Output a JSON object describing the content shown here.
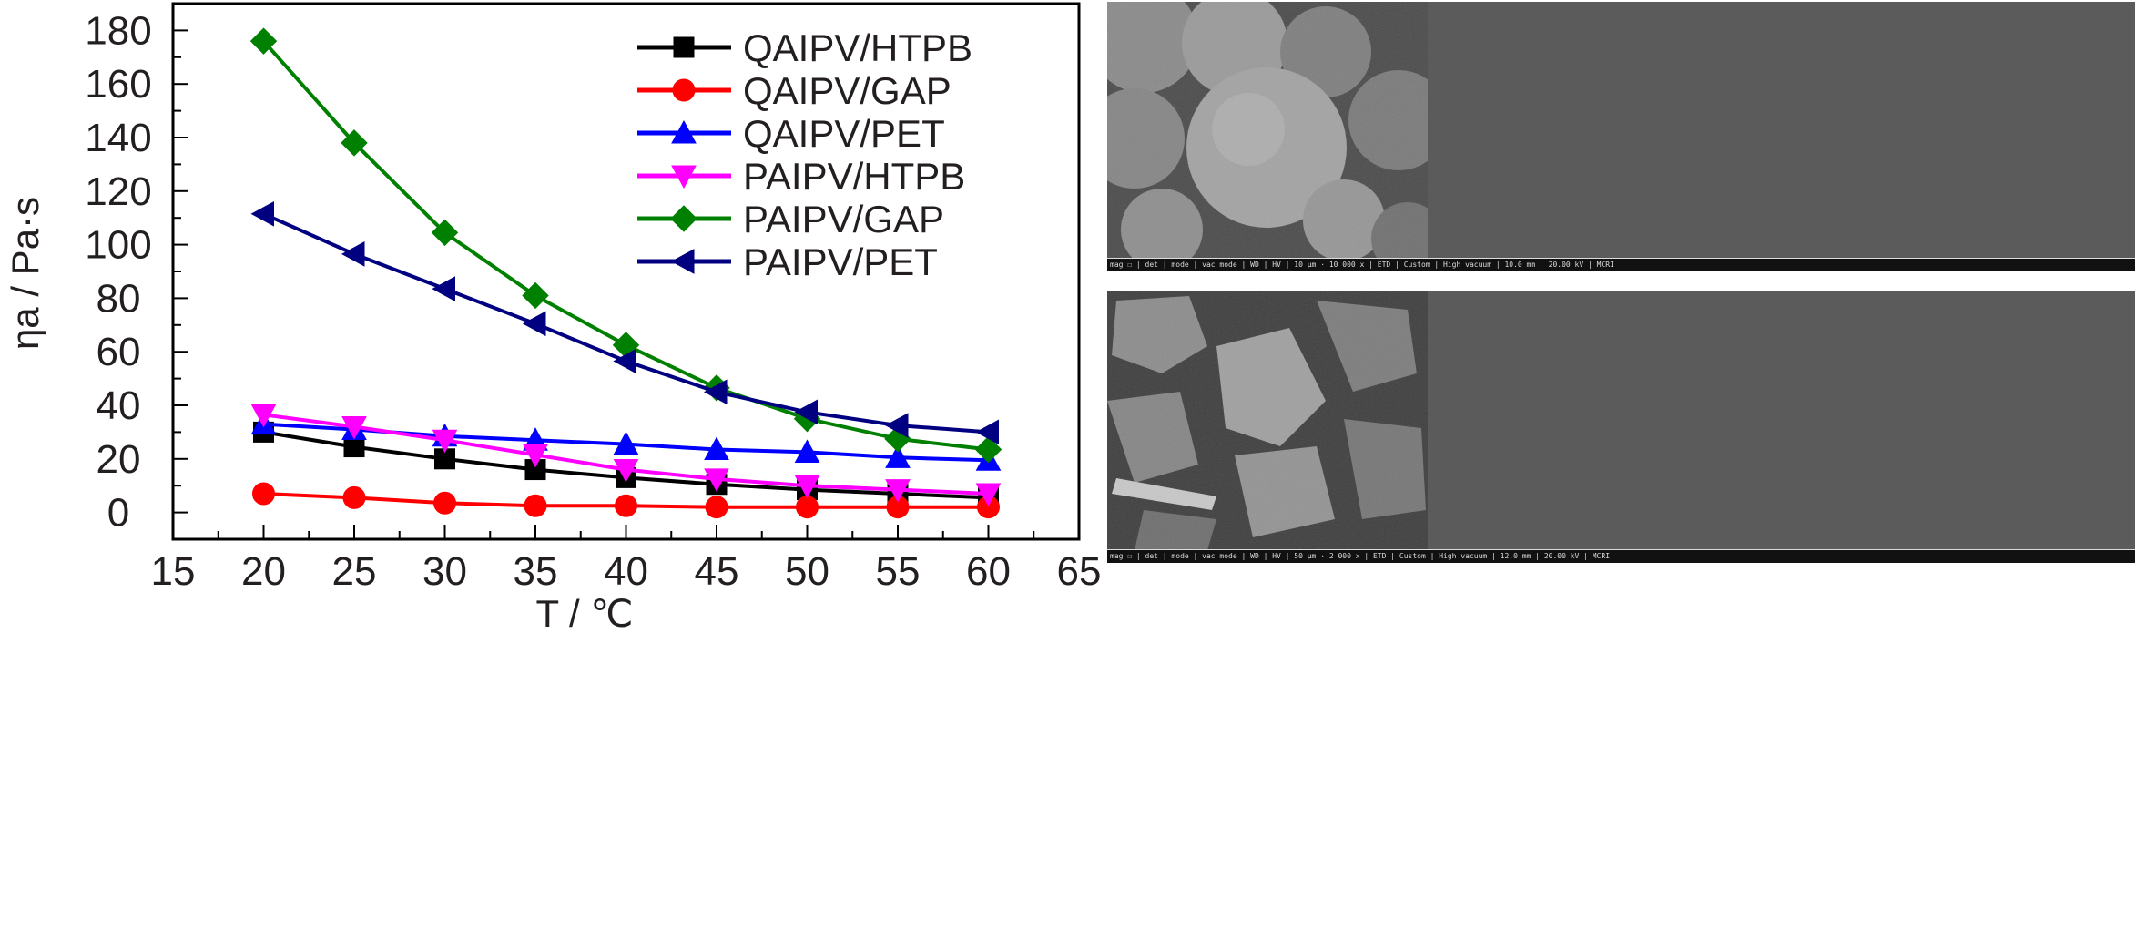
{
  "chart_data": {
    "type": "line",
    "xlabel": "T / ℃",
    "ylabel": "ηa / Pa·s",
    "xlim": [
      15,
      65
    ],
    "ylim": [
      -10,
      190
    ],
    "xticks": [
      15,
      20,
      25,
      30,
      35,
      40,
      45,
      50,
      55,
      60,
      65
    ],
    "yticks": [
      0,
      20,
      40,
      60,
      80,
      100,
      120,
      140,
      160,
      180
    ],
    "x": [
      20,
      25,
      30,
      35,
      40,
      45,
      50,
      55,
      60
    ],
    "legend_position": "top-right",
    "series": [
      {
        "name": "QAIPV/HTPB",
        "color": "#000000",
        "marker": "square",
        "values": [
          30,
          24.5,
          20,
          16,
          13,
          10.5,
          8.5,
          7,
          5.5
        ]
      },
      {
        "name": "QAIPV/GAP",
        "color": "#ff0000",
        "marker": "circle",
        "values": [
          7,
          5.5,
          3.5,
          2.5,
          2.5,
          2,
          2,
          2,
          2
        ]
      },
      {
        "name": "QAIPV/PET",
        "color": "#0000ff",
        "marker": "triangle-up",
        "values": [
          33,
          31,
          28.5,
          27,
          25.5,
          23.5,
          22.5,
          20.5,
          19.5
        ]
      },
      {
        "name": "PAIPV/HTPB",
        "color": "#ff00ff",
        "marker": "triangle-down",
        "values": [
          36.5,
          32,
          27,
          21.5,
          16,
          12.5,
          10,
          8.5,
          7
        ]
      },
      {
        "name": "PAIPV/GAP",
        "color": "#008000",
        "marker": "diamond",
        "values": [
          176,
          138,
          104.5,
          81,
          62.5,
          46.5,
          35,
          27.5,
          23.5
        ]
      },
      {
        "name": "PAIPV/PET",
        "color": "#000080",
        "marker": "triangle-left",
        "values": [
          111.5,
          96.5,
          83.5,
          70.5,
          56.5,
          45,
          37.5,
          32.5,
          30
        ]
      }
    ]
  },
  "sem_images": [
    {
      "caption": "mag ☐ | det | mode | vac mode | WD | HV | 10 μm · 10 000 x | ETD | Custom | High vacuum | 10.0 mm | 20.00 kV | MCRI"
    },
    {
      "caption": "mag ☐ | det | mode | vac mode | WD | HV | 50 μm · 2 000 x | ETD | Custom | High vacuum | 12.0 mm | 20.00 kV | MCRI"
    }
  ]
}
